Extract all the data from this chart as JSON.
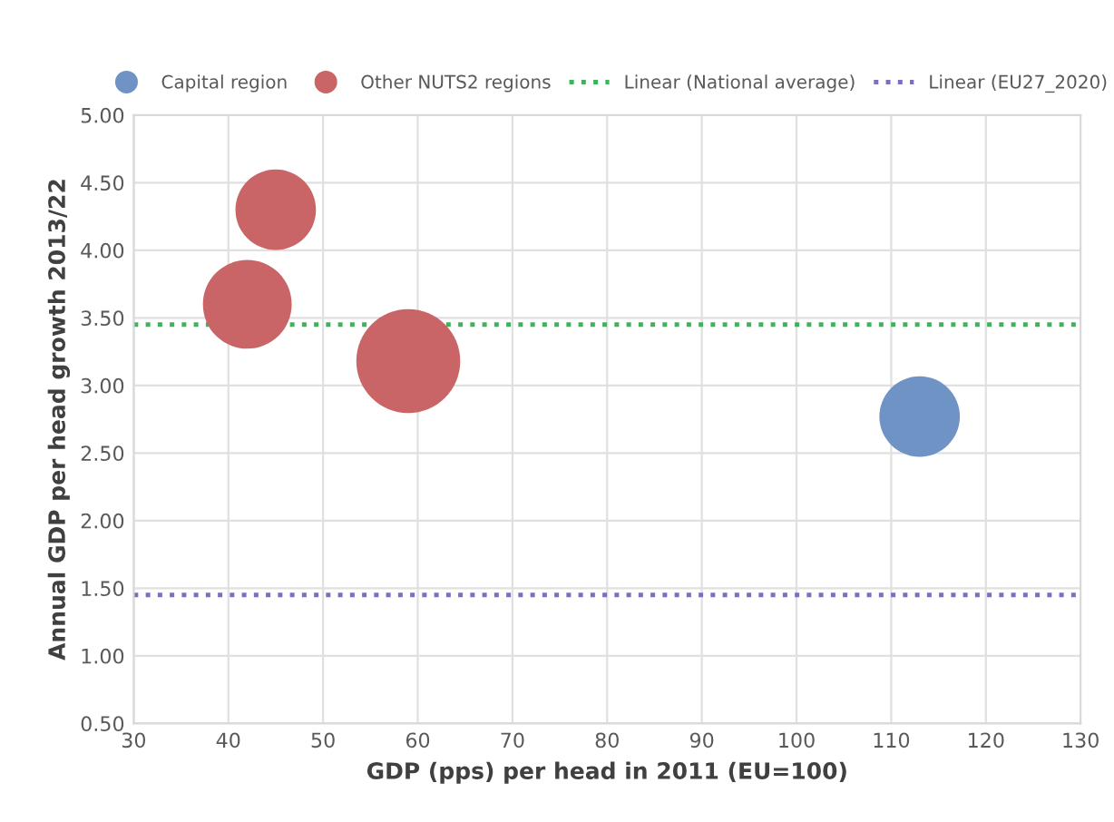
{
  "chart_data": {
    "type": "bubble",
    "xlabel": "GDP (pps) per head in 2011 (EU=100)",
    "ylabel": "Annual GDP per head growth 2013/22",
    "series": [
      {
        "name": "Capital region",
        "color": "#6f93c4",
        "x": [
          113
        ],
        "values": [
          2.77
        ],
        "sizes": [
          0.6
        ]
      },
      {
        "name": "Other NUTS2 regions",
        "color": "#c96566",
        "x": [
          45,
          42,
          59
        ],
        "values": [
          4.3,
          3.6,
          3.18
        ],
        "sizes": [
          0.6,
          0.73,
          1
        ]
      }
    ],
    "ref_lines": [
      {
        "axis": "y",
        "value": 3.45,
        "label": "Linear (National average)",
        "color": "#3cb55a",
        "line_style": "dotted"
      },
      {
        "axis": "y",
        "value": 1.45,
        "label": "Linear (EU27_2020)",
        "color": "#7a6fc4",
        "line_style": "dotted"
      }
    ],
    "xlim": [
      30,
      130
    ],
    "xticks": [
      30,
      40,
      50,
      60,
      70,
      80,
      90,
      100,
      110,
      120,
      130
    ],
    "ylim": [
      0.5,
      5.0
    ],
    "yticks": [
      {
        "value": 0.5,
        "label": "0.50"
      },
      {
        "value": 1.0,
        "label": "1.00"
      },
      {
        "value": 1.5,
        "label": "1.50"
      },
      {
        "value": 2.0,
        "label": "2.00"
      },
      {
        "value": 2.5,
        "label": "2.50"
      },
      {
        "value": 3.0,
        "label": "3.00"
      },
      {
        "value": 3.5,
        "label": "3.50"
      },
      {
        "value": 4.0,
        "label": "4.00"
      },
      {
        "value": 4.5,
        "label": "4.50"
      },
      {
        "value": 5.0,
        "label": "5.00"
      }
    ],
    "grid": true,
    "legend": "top"
  }
}
